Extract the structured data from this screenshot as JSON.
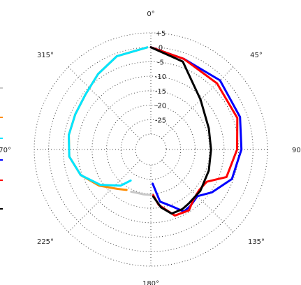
{
  "chart_data": {
    "type": "polar-line",
    "angle_labels": [
      {
        "deg": 0,
        "label": "0°"
      },
      {
        "deg": 45,
        "label": "45°"
      },
      {
        "deg": 90,
        "label": "90°"
      },
      {
        "deg": 135,
        "label": "135°"
      },
      {
        "deg": 180,
        "label": "180°"
      },
      {
        "deg": 225,
        "label": "225°"
      },
      {
        "deg": 270,
        "label": "270°"
      },
      {
        "deg": 315,
        "label": "315°"
      }
    ],
    "radial_ticks": [
      "+5",
      "0",
      "-5",
      "-10",
      "-15",
      "-20",
      "-25"
    ],
    "radial_range": [
      -30,
      5
    ],
    "grid": true,
    "series": [
      {
        "color": "#c8c8c8",
        "points": [
          [
            180,
            -19.6
          ],
          [
            190,
            -19.6
          ],
          [
            200,
            -19.5
          ],
          [
            205,
            -19.2
          ]
        ]
      },
      {
        "color": "#ff8c00",
        "points": [
          [
            211,
            -19.0
          ],
          [
            220,
            -17.5
          ],
          [
            235,
            -13.5
          ],
          [
            250,
            -9.5
          ],
          [
            265,
            -7.0
          ],
          [
            280,
            -6.5
          ],
          [
            295,
            -6.5
          ],
          [
            310,
            -5.8
          ],
          [
            325,
            -3.5
          ],
          [
            340,
            -1.0
          ],
          [
            358,
            0
          ]
        ]
      },
      {
        "color": "#00e5ff",
        "points": [
          [
            213,
            -22.5
          ],
          [
            220,
            -19.0
          ],
          [
            235,
            -14.0
          ],
          [
            250,
            -9.5
          ],
          [
            265,
            -7.0
          ],
          [
            280,
            -6.5
          ],
          [
            295,
            -6.5
          ],
          [
            310,
            -5.8
          ],
          [
            325,
            -3.5
          ],
          [
            340,
            -1.0
          ],
          [
            358,
            0
          ]
        ]
      },
      {
        "color": "#0000ff",
        "points": [
          [
            0,
            0
          ],
          [
            20,
            -2
          ],
          [
            45,
            -1.5
          ],
          [
            70,
            -2.5
          ],
          [
            90,
            -4
          ],
          [
            110,
            -5.5
          ],
          [
            125,
            -9.5
          ],
          [
            135,
            -12.5
          ],
          [
            145,
            -11.5
          ],
          [
            152,
            -11
          ],
          [
            160,
            -14.5
          ],
          [
            170,
            -17
          ],
          [
            177,
            -23.5
          ]
        ]
      },
      {
        "color": "#ff0000",
        "points": [
          [
            0,
            0
          ],
          [
            20,
            -2
          ],
          [
            45,
            -3
          ],
          [
            70,
            -3.5
          ],
          [
            90,
            -5.5
          ],
          [
            110,
            -7.5
          ],
          [
            120,
            -13
          ],
          [
            130,
            -13.5
          ],
          [
            140,
            -12.5
          ],
          [
            148,
            -10.5
          ],
          [
            160,
            -11
          ],
          [
            172,
            -16
          ],
          [
            177,
            -19.5
          ]
        ]
      },
      {
        "color": "#000000",
        "points": [
          [
            0,
            0
          ],
          [
            20,
            -3
          ],
          [
            45,
            -11
          ],
          [
            70,
            -14
          ],
          [
            90,
            -14.5
          ],
          [
            110,
            -14
          ],
          [
            130,
            -13
          ],
          [
            145,
            -12.5
          ],
          [
            152,
            -12
          ],
          [
            162,
            -12
          ],
          [
            170,
            -15
          ],
          [
            177,
            -19
          ]
        ]
      }
    ],
    "legend_markers": [
      "#c8c8c8",
      "#ff8c00",
      "#00e5ff",
      "#0000ff",
      "#ff0000",
      "#000000"
    ]
  }
}
